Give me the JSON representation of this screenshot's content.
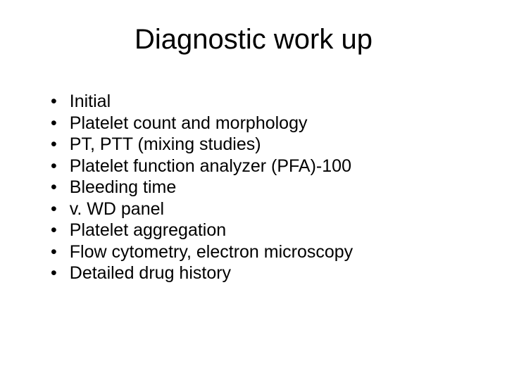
{
  "slide": {
    "title": "Diagnostic work up",
    "title_fontsize": 40,
    "body_fontsize": 25,
    "background_color": "#ffffff",
    "text_color": "#000000",
    "bullet_marker": "•",
    "bullets": [
      "Initial",
      "Platelet count and morphology",
      "PT, PTT (mixing studies)",
      "Platelet function analyzer (PFA)-100",
      "Bleeding time",
      "v. WD panel",
      "Platelet aggregation",
      "Flow cytometry, electron microscopy",
      "Detailed drug history"
    ]
  }
}
